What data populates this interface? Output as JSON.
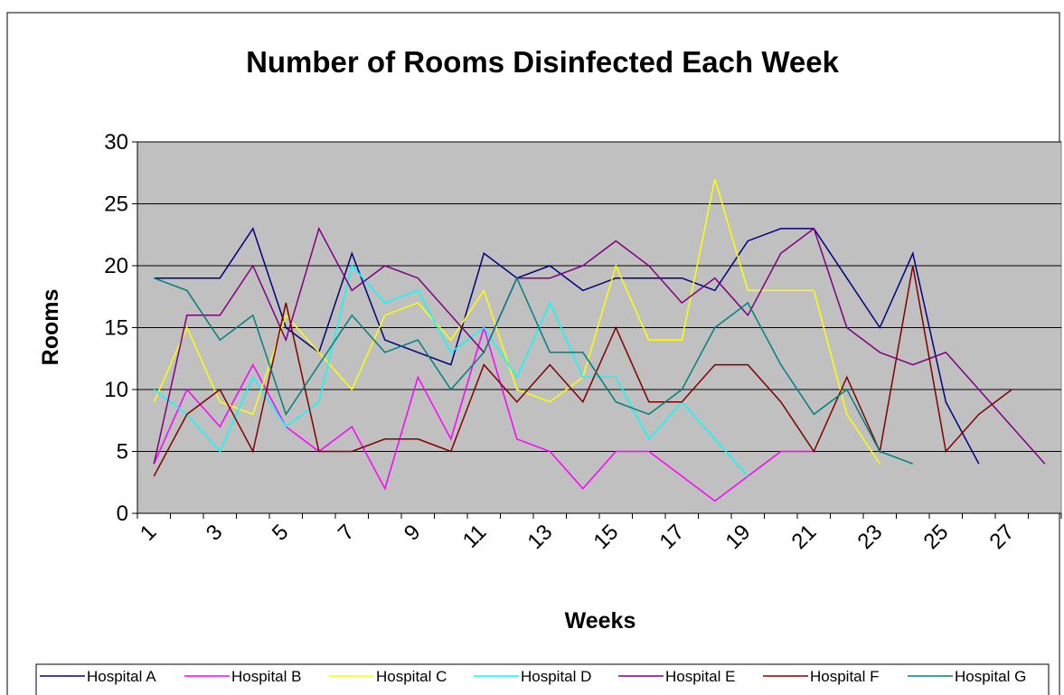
{
  "chart_data": {
    "type": "line",
    "title": "Number of Rooms Disinfected Each Week",
    "x_label": "Weeks",
    "y_label": "Rooms",
    "categories": [
      "1",
      null,
      "3",
      null,
      "5",
      null,
      "7",
      null,
      "9",
      null,
      "11",
      null,
      "13",
      null,
      "15",
      null,
      "17",
      null,
      "19",
      null,
      "21",
      null,
      "23",
      null,
      "25",
      null,
      "27",
      null
    ],
    "ylim": [
      0,
      30
    ],
    "yticks": [
      0,
      5,
      10,
      15,
      20,
      25,
      30
    ],
    "grid": true,
    "legend": "bottom",
    "series": [
      {
        "name": "Hospital A",
        "color": "#000080",
        "values": [
          19,
          19,
          19,
          23,
          15,
          13,
          21,
          14,
          13,
          12,
          21,
          19,
          20,
          18,
          19,
          19,
          19,
          18,
          22,
          23,
          23,
          19,
          15,
          21,
          9,
          4,
          null,
          null
        ]
      },
      {
        "name": "Hospital B",
        "color": "#ff00ff",
        "values": [
          4,
          10,
          7,
          12,
          7,
          5,
          7,
          2,
          11,
          6,
          15,
          6,
          5,
          2,
          5,
          5,
          3,
          1,
          3,
          5,
          5,
          null,
          null,
          null,
          null,
          null,
          null,
          null
        ]
      },
      {
        "name": "Hospital C",
        "color": "#ffff00",
        "values": [
          9,
          15,
          9,
          8,
          16,
          13,
          10,
          16,
          17,
          14,
          18,
          10,
          9,
          11,
          20,
          14,
          14,
          27,
          18,
          18,
          18,
          8,
          4,
          null,
          null,
          null,
          null,
          null
        ]
      },
      {
        "name": "Hospital D",
        "color": "#00ffff",
        "values": [
          10,
          8,
          5,
          11,
          7,
          9,
          20,
          17,
          18,
          13,
          15,
          11,
          17,
          11,
          11,
          6,
          9,
          6,
          3,
          null,
          null,
          null,
          null,
          null,
          null,
          null,
          null,
          null
        ]
      },
      {
        "name": "Hospital E",
        "color": "#800080",
        "values": [
          4,
          16,
          16,
          20,
          14,
          23,
          18,
          20,
          19,
          16,
          13,
          19,
          19,
          20,
          22,
          20,
          17,
          19,
          16,
          21,
          23,
          15,
          13,
          12,
          13,
          10,
          7,
          4
        ]
      },
      {
        "name": "Hospital F",
        "color": "#800000",
        "values": [
          3,
          8,
          10,
          5,
          17,
          5,
          5,
          6,
          6,
          5,
          12,
          9,
          12,
          9,
          15,
          9,
          9,
          12,
          12,
          9,
          5,
          11,
          5,
          20,
          5,
          8,
          10,
          null
        ]
      },
      {
        "name": "Hospital G",
        "color": "#008080",
        "values": [
          19,
          18,
          14,
          16,
          8,
          12,
          16,
          13,
          14,
          10,
          13,
          19,
          13,
          13,
          9,
          8,
          10,
          15,
          17,
          12,
          8,
          10,
          5,
          4,
          null,
          null,
          null,
          null
        ]
      }
    ]
  }
}
